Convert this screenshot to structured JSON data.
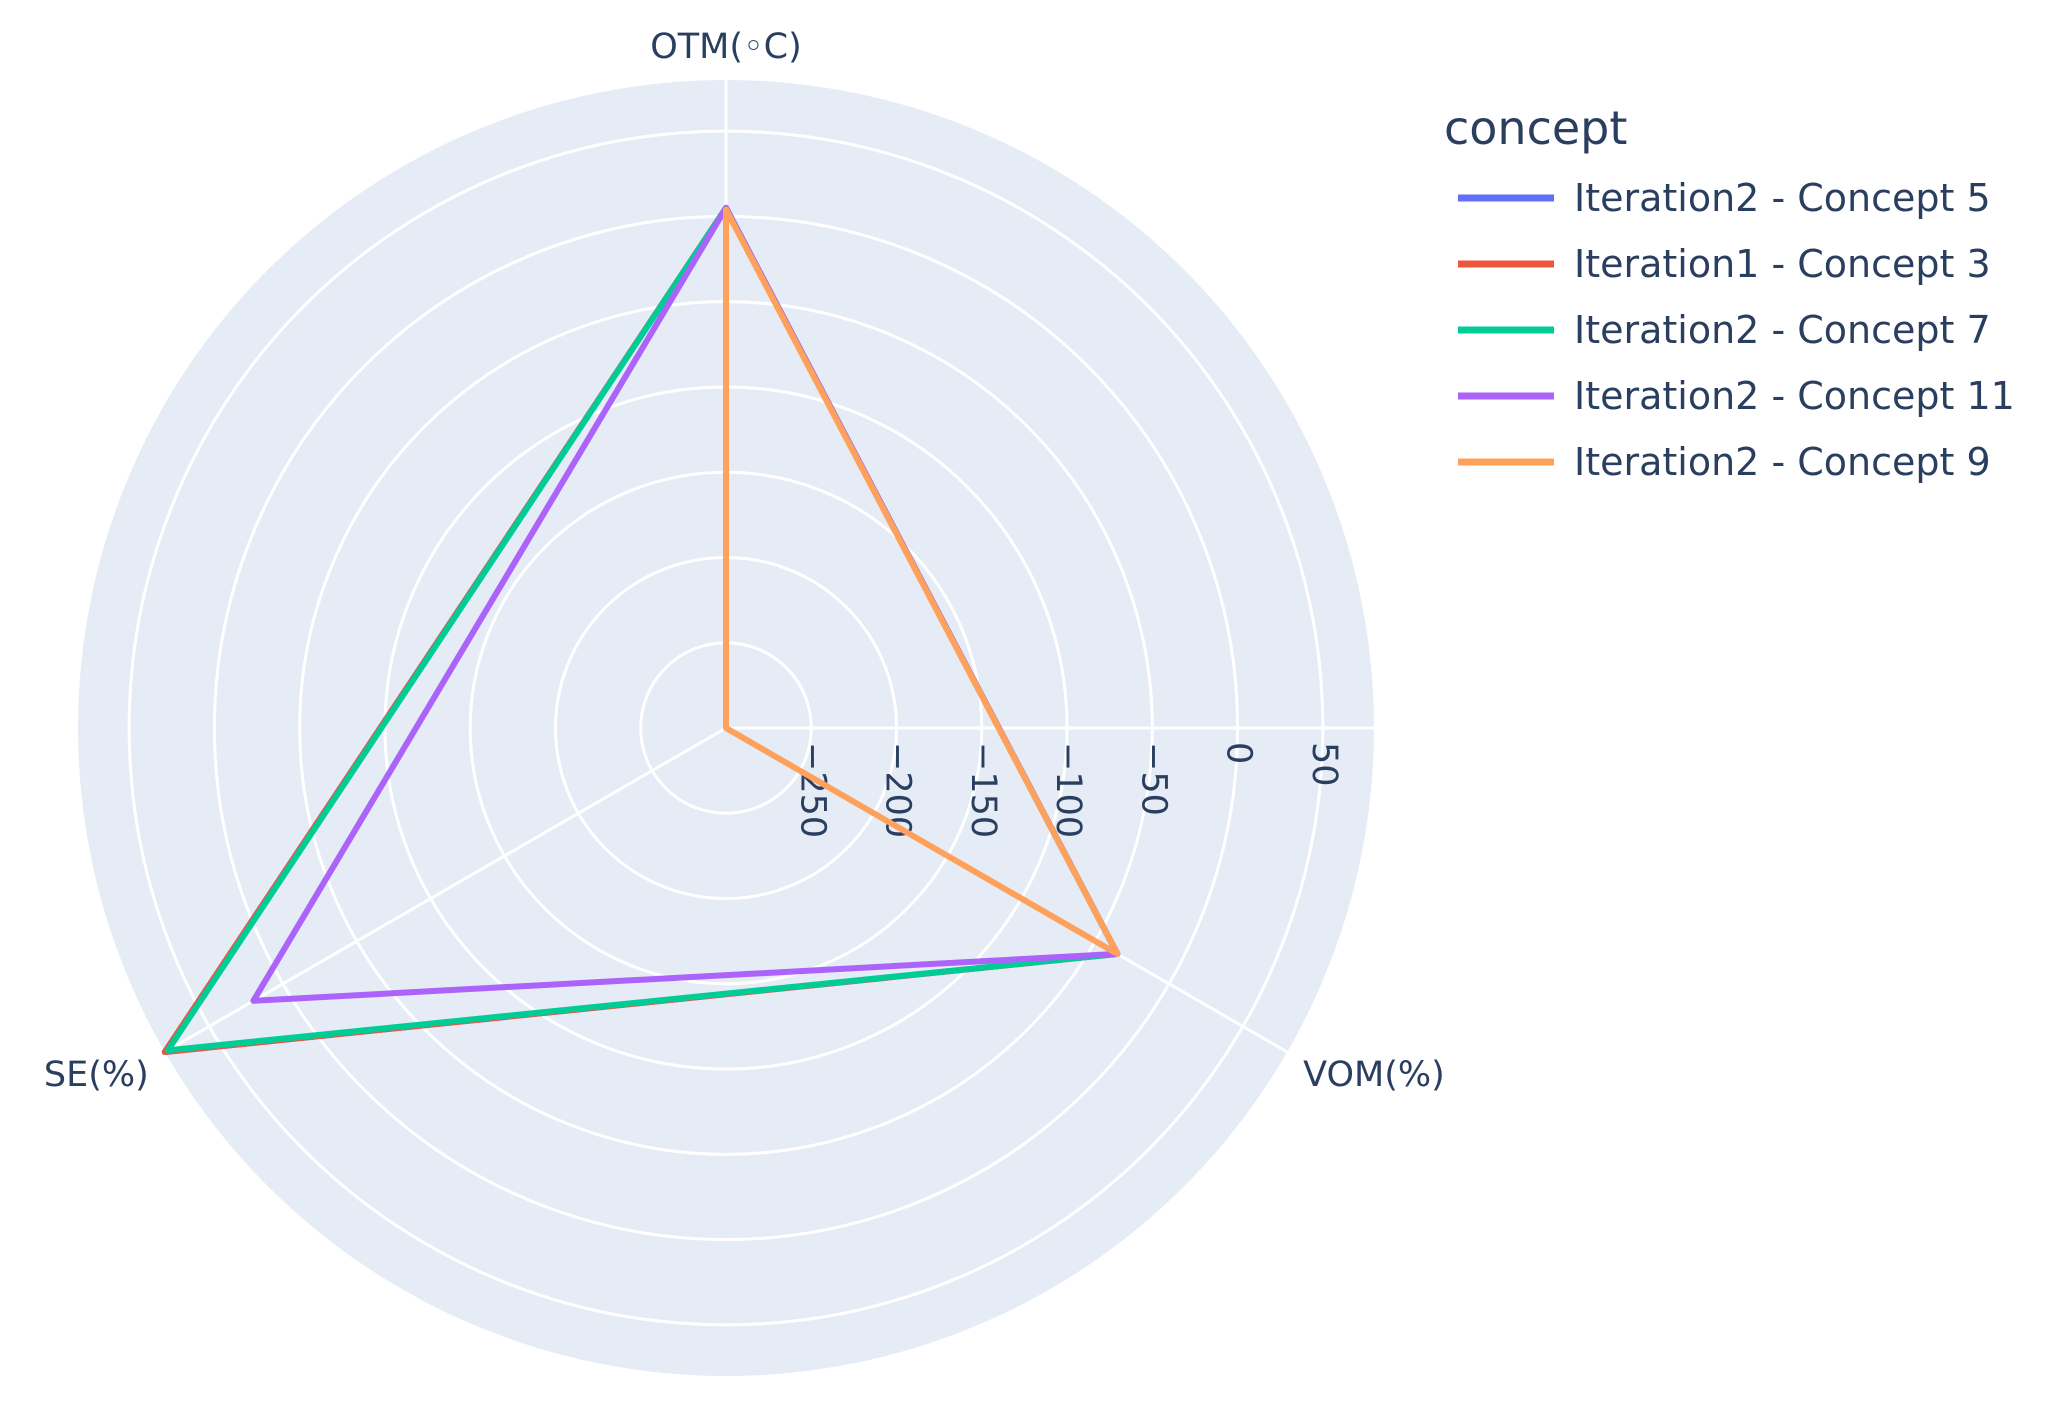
{
  "chart_data": {
    "type": "radar",
    "title": "",
    "axes": [
      "OTM(◦C)",
      "VOM(%)",
      "SE(%)"
    ],
    "radial_ticks": [
      -250,
      -200,
      -150,
      -100,
      -50,
      0,
      50
    ],
    "radial_range": [
      -300,
      80
    ],
    "grid": true,
    "legend_title": "concept",
    "legend_position": "right",
    "series": [
      {
        "name": "Iteration2 - Concept 5",
        "color": "#636efa",
        "values": [
          5,
          -35,
          80
        ]
      },
      {
        "name": "Iteration1 - Concept 3",
        "color": "#EF553B",
        "values": [
          5,
          -35,
          80
        ]
      },
      {
        "name": "Iteration2 - Concept 7",
        "color": "#00cc96",
        "values": [
          5,
          -35,
          78
        ]
      },
      {
        "name": "Iteration2 - Concept 11",
        "color": "#ab63fa",
        "values": [
          5,
          -35,
          20
        ]
      },
      {
        "name": "Iteration2 - Concept 9",
        "color": "#FFA15A",
        "values": [
          4,
          -35,
          -300
        ]
      }
    ]
  }
}
